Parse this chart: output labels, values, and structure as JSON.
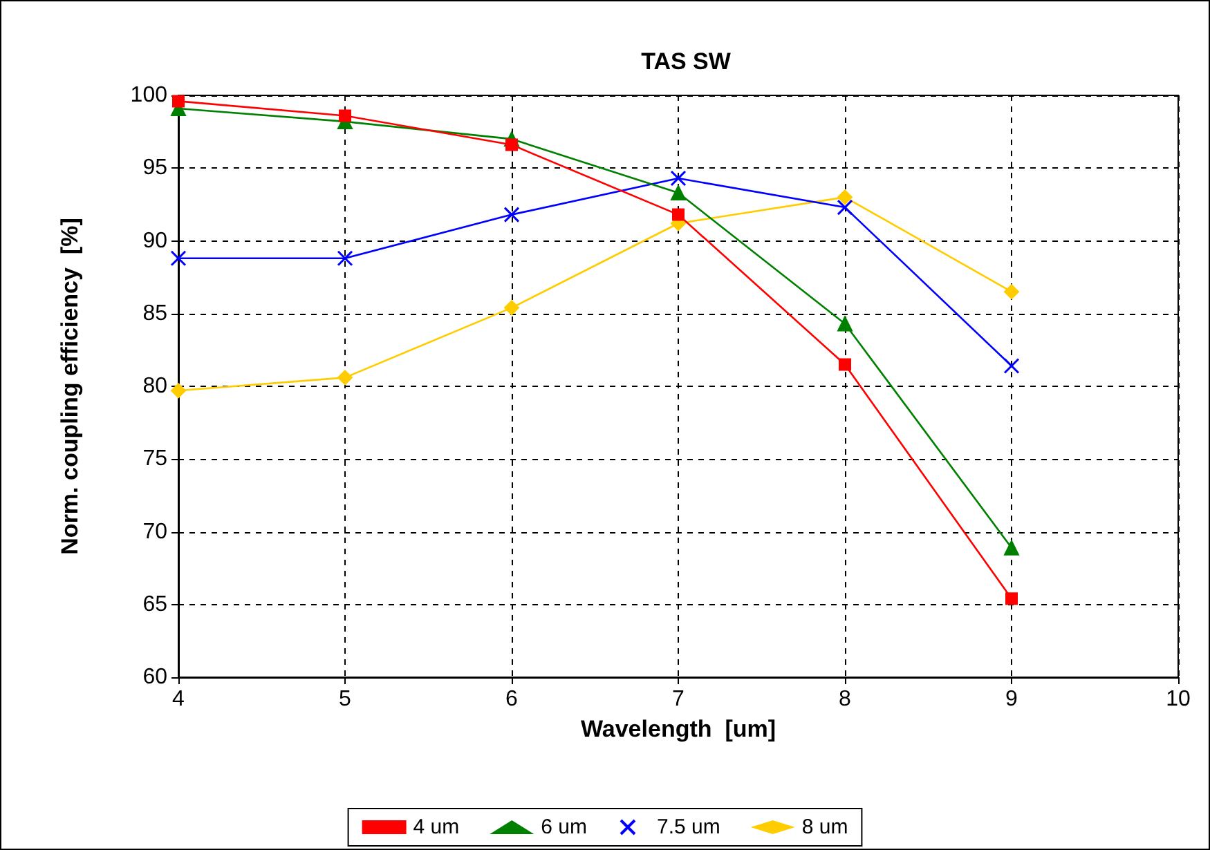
{
  "chart_data": {
    "type": "line",
    "title": "TAS SW",
    "xlabel": "Wavelength  [um]",
    "ylabel": "Norm. coupling efficiency  [%]",
    "x": [
      4,
      5,
      6,
      7,
      8,
      9
    ],
    "xlim": [
      4,
      10
    ],
    "xticks": [
      4,
      5,
      6,
      7,
      8,
      9,
      10
    ],
    "ylim": [
      60,
      100
    ],
    "yticks": [
      60,
      65,
      70,
      75,
      80,
      85,
      90,
      95,
      100
    ],
    "grid": true,
    "legend": "bottom",
    "line_style": "solid",
    "series": [
      {
        "name": "4 um",
        "color": "#ff0000",
        "marker": "square",
        "values": [
          99.6,
          98.6,
          96.6,
          91.8,
          81.5,
          65.4
        ]
      },
      {
        "name": "6 um",
        "color": "#008000",
        "marker": "triangle",
        "values": [
          99.1,
          98.2,
          97.0,
          93.3,
          84.3,
          68.9
        ]
      },
      {
        "name": "7.5 um",
        "color": "#0000ff",
        "marker": "cross",
        "values": [
          88.8,
          88.8,
          91.8,
          94.3,
          92.3,
          81.4
        ]
      },
      {
        "name": "8 um",
        "color": "#ffcc00",
        "marker": "diamond",
        "values": [
          79.7,
          80.6,
          85.4,
          91.2,
          93.0,
          86.5
        ]
      }
    ]
  }
}
